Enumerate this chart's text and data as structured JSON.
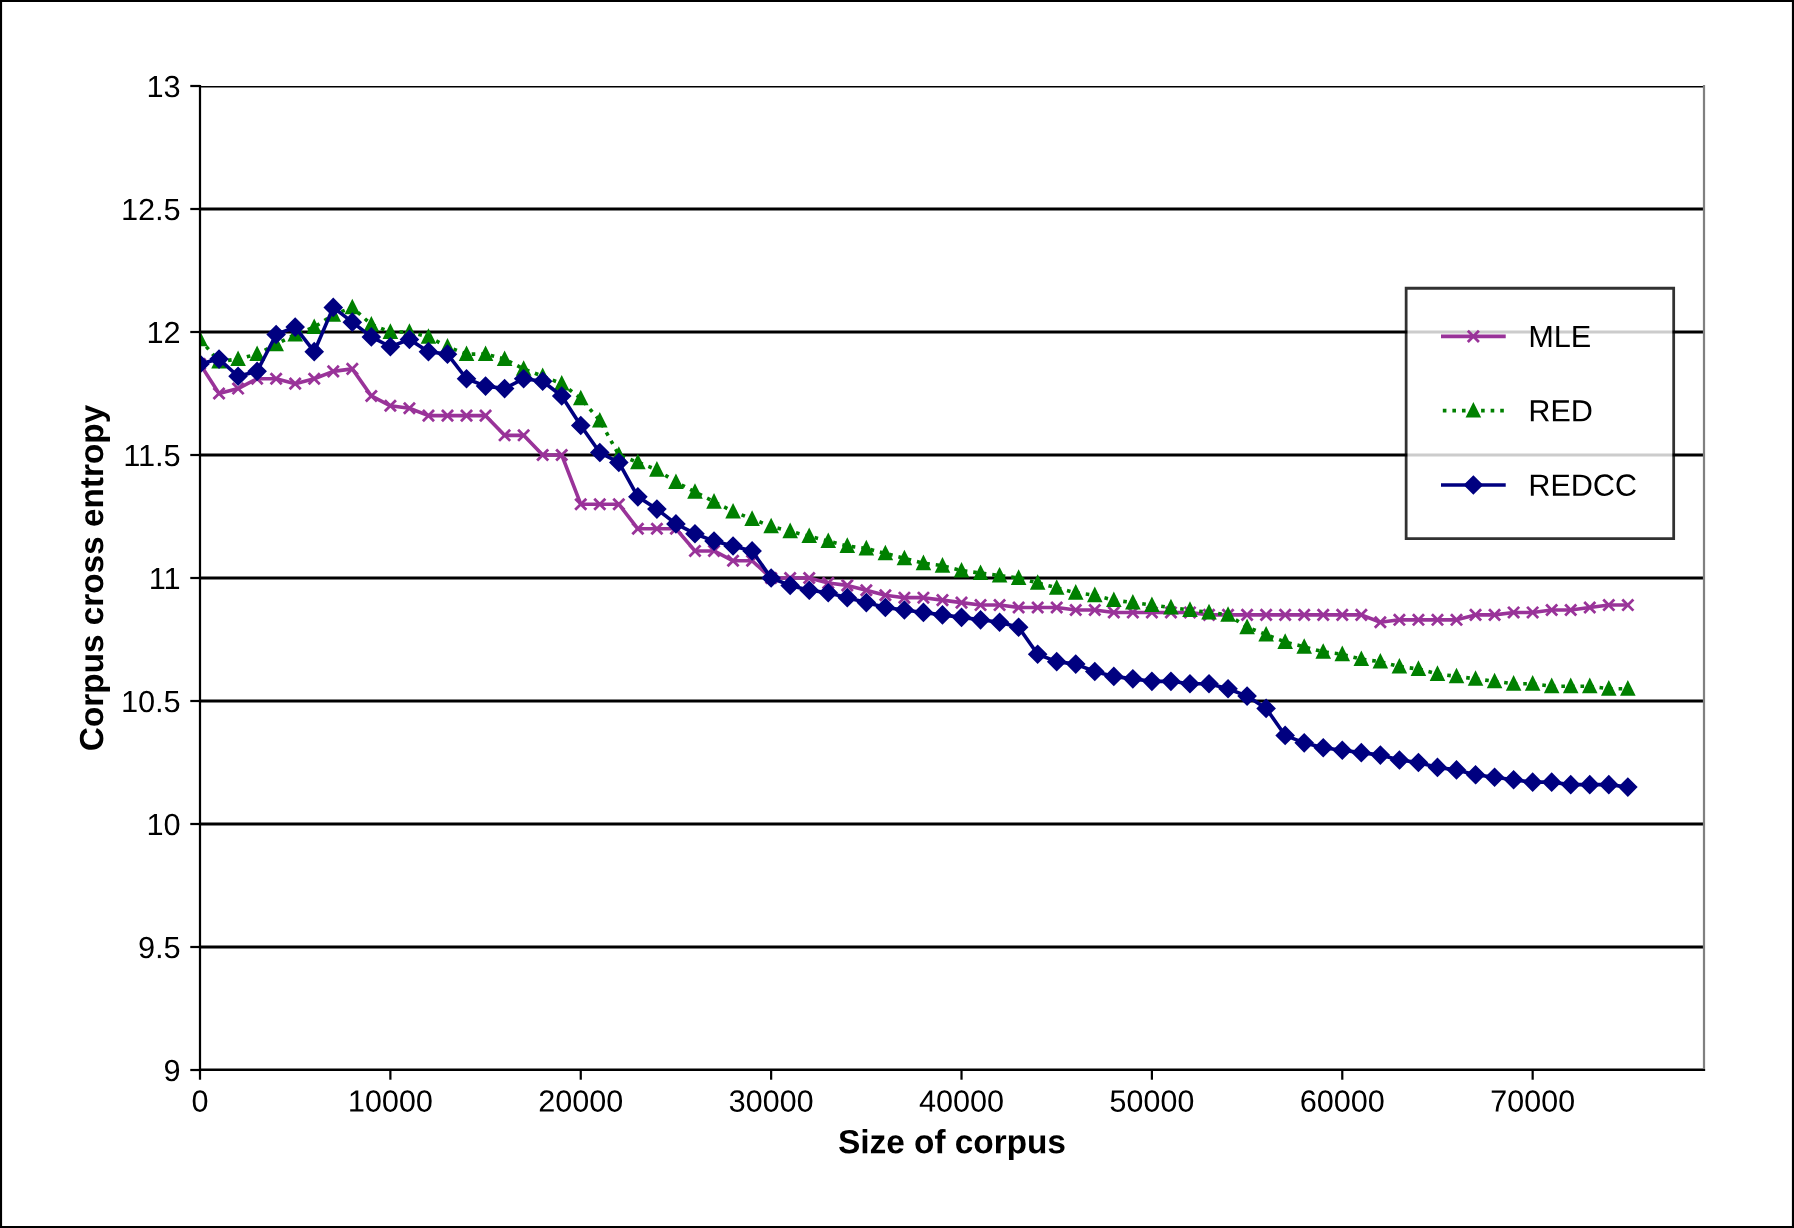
{
  "chart_data": {
    "type": "line",
    "xlabel": "Size of corpus",
    "ylabel": "Corpus cross entropy",
    "xlim": [
      0,
      79000
    ],
    "xticks": [
      0,
      10000,
      20000,
      30000,
      40000,
      50000,
      60000,
      70000
    ],
    "ylim": [
      9,
      13
    ],
    "yticks": [
      9,
      9.5,
      10,
      10.5,
      11,
      11.5,
      12,
      12.5,
      13
    ],
    "grid": "y",
    "legend": "top right",
    "x": [
      0,
      1000,
      2000,
      3000,
      4000,
      5000,
      6000,
      7000,
      8000,
      9000,
      10000,
      11000,
      12000,
      13000,
      14000,
      15000,
      16000,
      17000,
      18000,
      19000,
      20000,
      21000,
      22000,
      23000,
      24000,
      25000,
      26000,
      27000,
      28000,
      29000,
      30000,
      31000,
      32000,
      33000,
      34000,
      35000,
      36000,
      37000,
      38000,
      39000,
      40000,
      41000,
      42000,
      43000,
      44000,
      45000,
      46000,
      47000,
      48000,
      49000,
      50000,
      51000,
      52000,
      53000,
      54000,
      55000,
      56000,
      57000,
      58000,
      59000,
      60000,
      61000,
      62000,
      63000,
      64000,
      65000,
      66000,
      67000,
      68000,
      69000,
      70000,
      71000,
      72000,
      73000,
      74000,
      75000
    ],
    "series": [
      {
        "name": "MLE",
        "color": "#993399",
        "marker": "cross",
        "line_style": "solid",
        "values": [
          11.87,
          11.75,
          11.77,
          11.81,
          11.81,
          11.79,
          11.81,
          11.84,
          11.85,
          11.74,
          11.7,
          11.69,
          11.66,
          11.66,
          11.66,
          11.66,
          11.58,
          11.58,
          11.5,
          11.5,
          11.3,
          11.3,
          11.3,
          11.2,
          11.2,
          11.2,
          11.11,
          11.11,
          11.07,
          11.07,
          11.0,
          11.0,
          11.0,
          10.98,
          10.97,
          10.95,
          10.93,
          10.92,
          10.92,
          10.91,
          10.9,
          10.89,
          10.89,
          10.88,
          10.88,
          10.88,
          10.87,
          10.87,
          10.86,
          10.86,
          10.86,
          10.86,
          10.86,
          10.85,
          10.85,
          10.85,
          10.85,
          10.85,
          10.85,
          10.85,
          10.85,
          10.85,
          10.82,
          10.83,
          10.83,
          10.83,
          10.83,
          10.85,
          10.85,
          10.86,
          10.86,
          10.87,
          10.87,
          10.88,
          10.89,
          10.89
        ]
      },
      {
        "name": "RED",
        "color": "#008000",
        "marker": "triangle",
        "line_style": "dotted",
        "values": [
          11.97,
          11.88,
          11.89,
          11.91,
          11.95,
          11.99,
          12.02,
          12.07,
          12.1,
          12.03,
          12.0,
          12.0,
          11.98,
          11.94,
          11.91,
          11.91,
          11.89,
          11.85,
          11.82,
          11.79,
          11.73,
          11.64,
          11.5,
          11.47,
          11.44,
          11.39,
          11.35,
          11.31,
          11.27,
          11.24,
          11.21,
          11.19,
          11.17,
          11.15,
          11.13,
          11.12,
          11.1,
          11.08,
          11.06,
          11.05,
          11.03,
          11.02,
          11.01,
          11.0,
          10.98,
          10.96,
          10.94,
          10.93,
          10.91,
          10.9,
          10.89,
          10.88,
          10.87,
          10.86,
          10.85,
          10.8,
          10.77,
          10.74,
          10.72,
          10.7,
          10.69,
          10.67,
          10.66,
          10.64,
          10.63,
          10.61,
          10.6,
          10.59,
          10.58,
          10.57,
          10.57,
          10.56,
          10.56,
          10.56,
          10.55,
          10.55
        ]
      },
      {
        "name": "REDCC",
        "color": "#000080",
        "marker": "diamond",
        "line_style": "solid",
        "values": [
          11.87,
          11.89,
          11.82,
          11.84,
          11.99,
          12.02,
          11.92,
          12.1,
          12.04,
          11.98,
          11.94,
          11.97,
          11.92,
          11.91,
          11.81,
          11.78,
          11.77,
          11.81,
          11.8,
          11.74,
          11.62,
          11.51,
          11.47,
          11.33,
          11.28,
          11.22,
          11.18,
          11.15,
          11.13,
          11.11,
          11.0,
          10.97,
          10.95,
          10.94,
          10.92,
          10.9,
          10.88,
          10.87,
          10.86,
          10.85,
          10.84,
          10.83,
          10.82,
          10.8,
          10.69,
          10.66,
          10.65,
          10.62,
          10.6,
          10.59,
          10.58,
          10.58,
          10.57,
          10.57,
          10.55,
          10.52,
          10.47,
          10.36,
          10.33,
          10.31,
          10.3,
          10.29,
          10.28,
          10.26,
          10.25,
          10.23,
          10.22,
          10.2,
          10.19,
          10.18,
          10.17,
          10.17,
          10.16,
          10.16,
          10.16,
          10.15
        ]
      }
    ]
  }
}
